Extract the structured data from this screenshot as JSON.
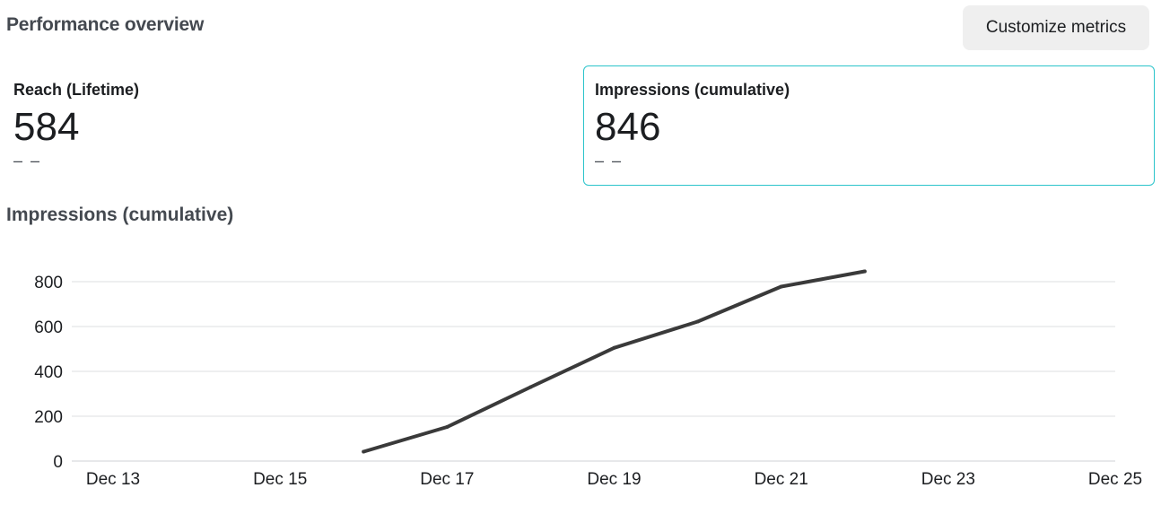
{
  "header": {
    "title": "Performance overview",
    "customize_label": "Customize metrics"
  },
  "metrics": [
    {
      "label": "Reach (Lifetime)",
      "value": "584",
      "delta": "– –",
      "selected": false
    },
    {
      "label": "Impressions (cumulative)",
      "value": "846",
      "delta": "– –",
      "selected": true
    }
  ],
  "colors": {
    "selected_border": "#2bc4cb",
    "line": "#3a3a3a",
    "grid": "#dddfe2"
  },
  "chart_data": {
    "type": "line",
    "title": "Impressions (cumulative)",
    "xlabel": "",
    "ylabel": "",
    "x_ticks": [
      "Dec 13",
      "Dec 15",
      "Dec 17",
      "Dec 19",
      "Dec 21",
      "Dec 23",
      "Dec 25"
    ],
    "y_ticks": [
      0,
      200,
      400,
      600,
      800
    ],
    "xlim": [
      "Dec 13",
      "Dec 25"
    ],
    "ylim": [
      0,
      800
    ],
    "grid": true,
    "series": [
      {
        "x": [
          "Dec 16",
          "Dec 17",
          "Dec 18",
          "Dec 19",
          "Dec 20",
          "Dec 21",
          "Dec 22"
        ],
        "values": [
          42,
          152,
          330,
          505,
          622,
          778,
          846
        ]
      }
    ]
  }
}
